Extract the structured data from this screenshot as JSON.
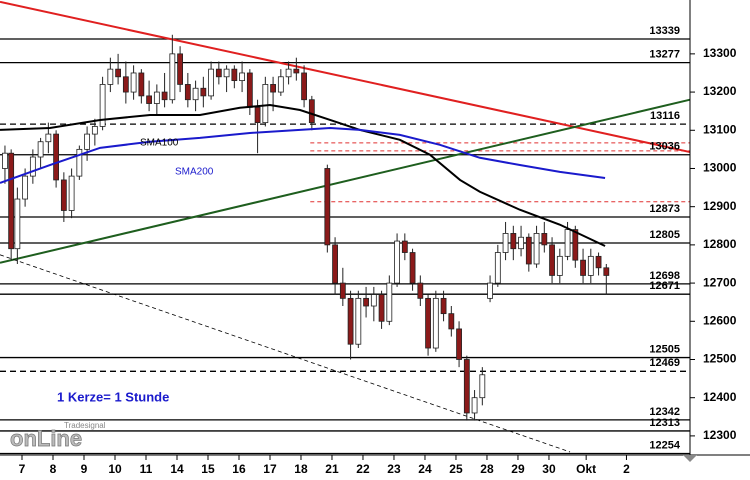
{
  "chart_data": {
    "type": "candlestick",
    "xlim": [
      -0.71,
      21.55
    ],
    "ylim": [
      12250,
      13441
    ],
    "yticks": [
      12300,
      12400,
      12500,
      12600,
      12700,
      12800,
      12900,
      13000,
      13100,
      13200,
      13300
    ],
    "xticks": [
      {
        "value": 0,
        "label": "7"
      },
      {
        "value": 1,
        "label": "8"
      },
      {
        "value": 2,
        "label": "9"
      },
      {
        "value": 3,
        "label": "10"
      },
      {
        "value": 4,
        "label": "11"
      },
      {
        "value": 5,
        "label": "14"
      },
      {
        "value": 6,
        "label": "15"
      },
      {
        "value": 7,
        "label": "16"
      },
      {
        "value": 8,
        "label": "17"
      },
      {
        "value": 9,
        "label": "18"
      },
      {
        "value": 10,
        "label": "21"
      },
      {
        "value": 11,
        "label": "22"
      },
      {
        "value": 12,
        "label": "23"
      },
      {
        "value": 13,
        "label": "24"
      },
      {
        "value": 14,
        "label": "25"
      },
      {
        "value": 15,
        "label": "28"
      },
      {
        "value": 16,
        "label": "29"
      },
      {
        "value": 17,
        "label": "30"
      },
      {
        "value": 18.2,
        "label": "Okt"
      },
      {
        "value": 19.5,
        "label": "2"
      }
    ],
    "up_color": "#ffffff",
    "down_color": "#8b1a1a",
    "candles": [
      [
        -0.55,
        13000,
        13060,
        12960,
        13040
      ],
      [
        -0.35,
        13040,
        13050,
        12760,
        12790
      ],
      [
        -0.15,
        12790,
        12950,
        12750,
        12920
      ],
      [
        0.1,
        12920,
        13000,
        12900,
        12980
      ],
      [
        0.35,
        12980,
        13050,
        12960,
        13030
      ],
      [
        0.6,
        13030,
        13080,
        13000,
        13070
      ],
      [
        0.85,
        13070,
        13120,
        13040,
        13090
      ],
      [
        1.1,
        13090,
        13100,
        12950,
        12970
      ],
      [
        1.35,
        12970,
        12990,
        12860,
        12890
      ],
      [
        1.6,
        12890,
        13000,
        12870,
        12980
      ],
      [
        1.85,
        12980,
        13060,
        12970,
        13050
      ],
      [
        2.1,
        13050,
        13110,
        13020,
        13090
      ],
      [
        2.35,
        13090,
        13130,
        13060,
        13110
      ],
      [
        2.6,
        13110,
        13240,
        13100,
        13220
      ],
      [
        2.85,
        13220,
        13290,
        13200,
        13260
      ],
      [
        3.1,
        13260,
        13300,
        13220,
        13240
      ],
      [
        3.35,
        13240,
        13280,
        13170,
        13200
      ],
      [
        3.6,
        13200,
        13270,
        13180,
        13250
      ],
      [
        3.85,
        13250,
        13260,
        13170,
        13190
      ],
      [
        4.1,
        13190,
        13230,
        13150,
        13170
      ],
      [
        4.35,
        13170,
        13220,
        13140,
        13200
      ],
      [
        4.6,
        13200,
        13250,
        13160,
        13180
      ],
      [
        4.85,
        13180,
        13350,
        13170,
        13300
      ],
      [
        5.1,
        13300,
        13320,
        13200,
        13220
      ],
      [
        5.35,
        13220,
        13250,
        13160,
        13180
      ],
      [
        5.6,
        13180,
        13230,
        13150,
        13210
      ],
      [
        5.85,
        13210,
        13240,
        13160,
        13190
      ],
      [
        6.1,
        13190,
        13280,
        13180,
        13260
      ],
      [
        6.35,
        13260,
        13280,
        13220,
        13240
      ],
      [
        6.6,
        13240,
        13270,
        13200,
        13260
      ],
      [
        6.85,
        13260,
        13270,
        13210,
        13230
      ],
      [
        7.1,
        13230,
        13280,
        13200,
        13250
      ],
      [
        7.35,
        13250,
        13260,
        13140,
        13160
      ],
      [
        7.6,
        13160,
        13180,
        13040,
        13120
      ],
      [
        7.85,
        13120,
        13240,
        13110,
        13220
      ],
      [
        8.1,
        13220,
        13240,
        13150,
        13200
      ],
      [
        8.35,
        13200,
        13260,
        13190,
        13240
      ],
      [
        8.6,
        13240,
        13280,
        13220,
        13260
      ],
      [
        8.85,
        13260,
        13290,
        13230,
        13250
      ],
      [
        9.1,
        13250,
        13270,
        13160,
        13180
      ],
      [
        9.35,
        13180,
        13190,
        13100,
        13120
      ],
      [
        9.85,
        13000,
        13010,
        12780,
        12800
      ],
      [
        10.1,
        12800,
        12820,
        12670,
        12700
      ],
      [
        10.35,
        12700,
        12740,
        12640,
        12660
      ],
      [
        10.6,
        12660,
        12680,
        12500,
        12540
      ],
      [
        10.85,
        12540,
        12680,
        12530,
        12660
      ],
      [
        11.1,
        12660,
        12690,
        12610,
        12640
      ],
      [
        11.35,
        12640,
        12690,
        12600,
        12670
      ],
      [
        11.6,
        12670,
        12680,
        12580,
        12600
      ],
      [
        11.85,
        12600,
        12720,
        12590,
        12700
      ],
      [
        12.1,
        12700,
        12830,
        12690,
        12810
      ],
      [
        12.35,
        12810,
        12830,
        12760,
        12780
      ],
      [
        12.6,
        12780,
        12790,
        12680,
        12700
      ],
      [
        12.85,
        12700,
        12720,
        12640,
        12660
      ],
      [
        13.1,
        12660,
        12670,
        12510,
        12530
      ],
      [
        13.35,
        12530,
        12680,
        12520,
        12660
      ],
      [
        13.6,
        12660,
        12680,
        12600,
        12620
      ],
      [
        13.85,
        12620,
        12640,
        12560,
        12580
      ],
      [
        14.1,
        12580,
        12600,
        12480,
        12500
      ],
      [
        14.35,
        12500,
        12510,
        12340,
        12360
      ],
      [
        14.6,
        12360,
        12420,
        12340,
        12400
      ],
      [
        14.85,
        12400,
        12480,
        12380,
        12460
      ],
      [
        15.1,
        12660,
        12720,
        12650,
        12700
      ],
      [
        15.35,
        12700,
        12800,
        12690,
        12780
      ],
      [
        15.6,
        12780,
        12860,
        12760,
        12830
      ],
      [
        15.85,
        12830,
        12850,
        12760,
        12790
      ],
      [
        16.1,
        12790,
        12850,
        12770,
        12820
      ],
      [
        16.35,
        12820,
        12830,
        12730,
        12750
      ],
      [
        16.6,
        12750,
        12850,
        12740,
        12830
      ],
      [
        16.85,
        12830,
        12860,
        12780,
        12800
      ],
      [
        17.1,
        12800,
        12820,
        12700,
        12720
      ],
      [
        17.35,
        12720,
        12790,
        12700,
        12770
      ],
      [
        17.6,
        12770,
        12860,
        12760,
        12840
      ],
      [
        17.85,
        12840,
        12850,
        12740,
        12760
      ],
      [
        18.1,
        12760,
        12790,
        12700,
        12720
      ],
      [
        18.35,
        12720,
        12790,
        12700,
        12770
      ],
      [
        18.6,
        12770,
        12780,
        12720,
        12740
      ],
      [
        18.85,
        12740,
        12750,
        12670,
        12720
      ]
    ],
    "series": [
      {
        "name": "SMA100",
        "color": "#000000",
        "x": [
          -0.71,
          0.9,
          2.52,
          4.13,
          5.74,
          7.03,
          8.0,
          8.97,
          9.94,
          10.9,
          12.19,
          13.16,
          14.13,
          14.77,
          16.06,
          17.35,
          18.81
        ],
        "values": [
          13101,
          13106,
          13127,
          13140,
          13140,
          13159,
          13166,
          13153,
          13127,
          13101,
          13075,
          13036,
          12970,
          12939,
          12892,
          12853,
          12797
        ]
      },
      {
        "name": "SMA200",
        "color": "#1a1acc",
        "x": [
          -0.71,
          0.9,
          2.52,
          4.13,
          5.74,
          7.35,
          8.97,
          9.94,
          10.9,
          12.19,
          13.48,
          14.77,
          16.06,
          17.35,
          18.81
        ],
        "values": [
          12962,
          13009,
          13054,
          13070,
          13080,
          13093,
          13101,
          13106,
          13101,
          13088,
          13062,
          13028,
          13009,
          12991,
          12975
        ]
      }
    ],
    "levels": [
      {
        "value": 13339,
        "style": "solid"
      },
      {
        "value": 13277,
        "style": "solid"
      },
      {
        "value": 13116,
        "style": "dashed"
      },
      {
        "value": 13036,
        "style": "solid"
      },
      {
        "value": 12873,
        "style": "solid"
      },
      {
        "value": 12805,
        "style": "solid"
      },
      {
        "value": 12698,
        "style": "solid"
      },
      {
        "value": 12671,
        "style": "solid"
      },
      {
        "value": 12505,
        "style": "solid"
      },
      {
        "value": 12469,
        "style": "dashed"
      },
      {
        "value": 12342,
        "style": "solid"
      },
      {
        "value": 12313,
        "style": "solid"
      },
      {
        "value": 12254,
        "style": "solid"
      }
    ],
    "red_levels": {
      "color": "#e03030",
      "x_start": 9.3,
      "values": [
        13067,
        13046,
        12913
      ]
    },
    "trendlines": [
      {
        "color": "#e02020",
        "style": "solid",
        "x": [
          -0.71,
          21.55
        ],
        "values": [
          13436,
          13043
        ]
      },
      {
        "color": "#1e5e1e",
        "style": "solid",
        "x": [
          -0.71,
          21.55
        ],
        "values": [
          12753,
          13180
        ]
      },
      {
        "color": "#000000",
        "style": "dashed",
        "x": [
          -0.71,
          17.68
        ],
        "values": [
          12774,
          12258
        ]
      }
    ],
    "annotation": "1 Kerze= 1 Stunde",
    "logo": {
      "top": "Tradesignal",
      "main": "onLine"
    }
  }
}
